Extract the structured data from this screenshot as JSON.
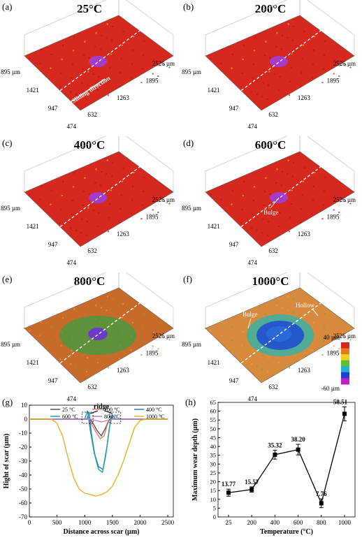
{
  "figure": {
    "panels": [
      {
        "id": "a",
        "label": "(a)",
        "title": "25°C",
        "surface": "#d6281c",
        "spot": "#a43cc8",
        "left_ticks": [
          "1895 µm",
          "1421",
          "947",
          "474"
        ],
        "right_ticks": [
          "2526 µm",
          "1895",
          "1263",
          "632"
        ],
        "annotation": "Sliding direction"
      },
      {
        "id": "b",
        "label": "(b)",
        "title": "200°C",
        "surface": "#d6281c",
        "spot": "#a43cc8",
        "left_ticks": [
          "1895 µm",
          "1421",
          "947",
          "474"
        ],
        "right_ticks": [
          "2526 µm",
          "1895",
          "1263",
          "632"
        ]
      },
      {
        "id": "c",
        "label": "(c)",
        "title": "400°C",
        "surface": "#d6281c",
        "spot": "#a43cc8",
        "left_ticks": [
          "1895 µm",
          "1421",
          "947",
          "474"
        ],
        "right_ticks": [
          "2526 µm",
          "1895",
          "1263",
          "632"
        ]
      },
      {
        "id": "d",
        "label": "(d)",
        "title": "600°C",
        "surface": "#d6281c",
        "spot": "#a43cc8",
        "left_ticks": [
          "1895 µm",
          "1421",
          "947",
          "474"
        ],
        "right_ticks": [
          "2526 µm",
          "1895",
          "1263",
          "632"
        ],
        "annotation": "Bulge"
      },
      {
        "id": "e",
        "label": "(e)",
        "title": "800°C",
        "surface": "#c86a2a",
        "spot": "#6c3cc8",
        "left_ticks": [
          "1895 µm",
          "1421",
          "947",
          "474"
        ],
        "right_ticks": [
          "2526 µm",
          "1895",
          "1263",
          "632"
        ]
      },
      {
        "id": "f",
        "label": "(f)",
        "title": "1000°C",
        "surface": "#d88a3c",
        "spot": "#2a6ad8",
        "left_ticks": [
          "1895 µm",
          "1421",
          "947",
          "474"
        ],
        "right_ticks": [
          "2526 µm",
          "1895",
          "1263",
          "632"
        ],
        "annotation": "Bulge",
        "annotation2": "Hollow"
      }
    ],
    "colorbar": {
      "max_label": "40 µm",
      "min_label": "-60 µm",
      "colors": [
        "#d6281c",
        "#e8781c",
        "#f0d020",
        "#60c030",
        "#20b0d0",
        "#2040d0",
        "#c020c0"
      ]
    }
  },
  "chart_data": [
    {
      "type": "line",
      "panel_label": "(g)",
      "xlabel": "Distance across scar (µm)",
      "ylabel": "Hight of scar (µm)",
      "xlim": [
        0,
        2600
      ],
      "ylim": [
        -70,
        10
      ],
      "x_ticks": [
        "0",
        "500",
        "1000",
        "1500",
        "2000",
        "2500"
      ],
      "y_ticks": [
        "10",
        "0",
        "-10",
        "-20",
        "-30",
        "-40",
        "-50",
        "-60",
        "-70"
      ],
      "annotation": "ridge",
      "series": [
        {
          "name": "25 °C",
          "color": "#555555",
          "points": [
            [
              0,
              0
            ],
            [
              1100,
              0
            ],
            [
              1150,
              -3
            ],
            [
              1220,
              -8
            ],
            [
              1300,
              -12
            ],
            [
              1380,
              -6
            ],
            [
              1420,
              -2
            ],
            [
              1450,
              0
            ],
            [
              2500,
              0
            ]
          ]
        },
        {
          "name": "200 °C",
          "color": "#e87a6a",
          "points": [
            [
              0,
              0
            ],
            [
              1080,
              0
            ],
            [
              1130,
              -4
            ],
            [
              1200,
              -9
            ],
            [
              1280,
              -14
            ],
            [
              1350,
              -12
            ],
            [
              1400,
              -5
            ],
            [
              1450,
              0
            ],
            [
              2500,
              0
            ]
          ]
        },
        {
          "name": "400 °C",
          "color": "#2a7ac8",
          "points": [
            [
              0,
              0
            ],
            [
              1040,
              0
            ],
            [
              1080,
              5
            ],
            [
              1120,
              -10
            ],
            [
              1180,
              -25
            ],
            [
              1250,
              -34
            ],
            [
              1330,
              -36
            ],
            [
              1400,
              -20
            ],
            [
              1450,
              -5
            ],
            [
              1500,
              3
            ],
            [
              1560,
              0
            ],
            [
              2500,
              0
            ]
          ]
        },
        {
          "name": "600 °C",
          "color": "#20a0a0",
          "points": [
            [
              0,
              0
            ],
            [
              1000,
              0
            ],
            [
              1050,
              6
            ],
            [
              1100,
              -8
            ],
            [
              1170,
              -24
            ],
            [
              1250,
              -36
            ],
            [
              1320,
              -38
            ],
            [
              1380,
              -26
            ],
            [
              1440,
              -8
            ],
            [
              1480,
              2
            ],
            [
              1530,
              0
            ],
            [
              2500,
              0
            ]
          ]
        },
        {
          "name": "800 °C",
          "color": "#c87ac8",
          "points": [
            [
              0,
              0
            ],
            [
              1100,
              0
            ],
            [
              1200,
              -1
            ],
            [
              1300,
              -2
            ],
            [
              1400,
              -1
            ],
            [
              1500,
              0
            ],
            [
              2500,
              0
            ]
          ]
        },
        {
          "name": "1000 °C",
          "color": "#f0b020",
          "points": [
            [
              0,
              0
            ],
            [
              400,
              0
            ],
            [
              500,
              -3
            ],
            [
              600,
              -12
            ],
            [
              700,
              -28
            ],
            [
              800,
              -42
            ],
            [
              900,
              -50
            ],
            [
              1000,
              -53
            ],
            [
              1100,
              -54
            ],
            [
              1200,
              -55
            ],
            [
              1300,
              -54
            ],
            [
              1400,
              -52
            ],
            [
              1500,
              -48
            ],
            [
              1600,
              -40
            ],
            [
              1700,
              -30
            ],
            [
              1800,
              -18
            ],
            [
              1900,
              -6
            ],
            [
              2000,
              -1
            ],
            [
              2100,
              0
            ],
            [
              2500,
              0
            ]
          ]
        }
      ]
    },
    {
      "type": "line",
      "panel_label": "(h)",
      "xlabel": "Temperature (°C)",
      "ylabel": "Maximum wear depth (µm)",
      "ylim": [
        0,
        65
      ],
      "x_ticks": [
        "25",
        "200",
        "400",
        "600",
        "800",
        "1000"
      ],
      "y_ticks": [
        "0",
        "5",
        "10",
        "15",
        "20",
        "25",
        "30",
        "35",
        "40",
        "45",
        "50",
        "55",
        "60",
        "65"
      ],
      "series": [
        {
          "name": "",
          "color": "#000000",
          "x": [
            25,
            200,
            400,
            600,
            800,
            1000
          ],
          "values": [
            13.77,
            15.57,
            35.32,
            38.2,
            7.76,
            58.51
          ],
          "errors": [
            2.0,
            1.5,
            2.5,
            3.0,
            2.5,
            4.0
          ],
          "labels": [
            "13.77",
            "15.57",
            "35.32",
            "38.20",
            "7.76",
            "58.51"
          ]
        }
      ]
    }
  ]
}
